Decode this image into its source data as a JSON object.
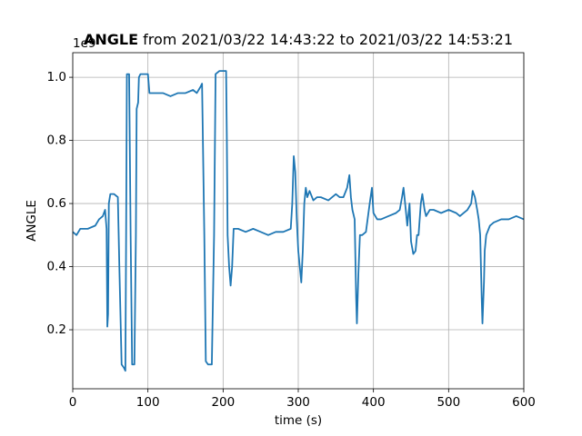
{
  "chart_data": {
    "type": "line",
    "title_bold": "ANGLE",
    "title": "from 2021/03/22 14:43:22 to 2021/03/22 14:53:21",
    "xlabel": "time (s)",
    "ylabel": "ANGLE",
    "y_offset_label": "1e9",
    "xlim": [
      0,
      600
    ],
    "ylim": [
      0.013,
      1.078
    ],
    "xticks": [
      0,
      100,
      200,
      300,
      400,
      500,
      600
    ],
    "yticks": [
      0.2,
      0.4,
      0.6,
      0.8,
      {
        "value": 1,
        "label": "1.0"
      }
    ],
    "grid": true,
    "series": [
      {
        "color": "#1f77b4",
        "x": [
          0,
          5,
          10,
          20,
          30,
          35,
          40,
          43,
          45,
          46,
          47,
          48,
          50,
          55,
          60,
          62,
          65,
          68,
          70,
          71,
          72,
          75,
          77,
          79,
          82,
          84,
          85,
          87,
          88,
          90,
          100,
          102,
          110,
          120,
          130,
          140,
          150,
          160,
          165,
          170,
          172,
          175,
          177,
          180,
          185,
          188,
          190,
          195,
          200,
          204,
          205,
          206,
          208,
          210,
          212,
          214,
          220,
          230,
          240,
          250,
          260,
          270,
          280,
          290,
          292,
          294,
          296,
          298,
          300,
          302,
          304,
          306,
          308,
          310,
          312,
          315,
          320,
          325,
          330,
          340,
          350,
          355,
          360,
          365,
          368,
          370,
          372,
          375,
          377,
          378,
          380,
          382,
          385,
          390,
          395,
          398,
          400,
          405,
          410,
          420,
          430,
          435,
          438,
          440,
          443,
          445,
          448,
          450,
          453,
          456,
          458,
          460,
          463,
          465,
          468,
          470,
          475,
          480,
          490,
          500,
          510,
          515,
          520,
          525,
          530,
          532,
          535,
          538,
          540,
          542,
          544,
          545,
          547,
          548,
          550,
          555,
          560,
          570,
          580,
          590,
          600
        ],
        "values": [
          0.51,
          0.5,
          0.52,
          0.52,
          0.53,
          0.55,
          0.56,
          0.58,
          0.52,
          0.21,
          0.25,
          0.6,
          0.63,
          0.63,
          0.62,
          0.4,
          0.09,
          0.08,
          0.07,
          0.5,
          1.01,
          1.01,
          0.5,
          0.09,
          0.09,
          0.5,
          0.9,
          0.92,
          1.0,
          1.01,
          1.01,
          0.95,
          0.95,
          0.95,
          0.94,
          0.95,
          0.95,
          0.96,
          0.95,
          0.97,
          0.98,
          0.5,
          0.1,
          0.09,
          0.09,
          0.5,
          1.01,
          1.02,
          1.02,
          1.02,
          0.8,
          0.5,
          0.4,
          0.34,
          0.4,
          0.52,
          0.52,
          0.51,
          0.52,
          0.51,
          0.5,
          0.51,
          0.51,
          0.52,
          0.6,
          0.75,
          0.7,
          0.55,
          0.45,
          0.4,
          0.35,
          0.45,
          0.6,
          0.65,
          0.62,
          0.64,
          0.61,
          0.62,
          0.62,
          0.61,
          0.63,
          0.62,
          0.62,
          0.65,
          0.69,
          0.62,
          0.58,
          0.55,
          0.3,
          0.22,
          0.38,
          0.5,
          0.5,
          0.51,
          0.6,
          0.65,
          0.57,
          0.55,
          0.55,
          0.56,
          0.57,
          0.58,
          0.62,
          0.65,
          0.58,
          0.53,
          0.6,
          0.48,
          0.44,
          0.45,
          0.5,
          0.5,
          0.6,
          0.63,
          0.58,
          0.56,
          0.58,
          0.58,
          0.57,
          0.58,
          0.57,
          0.56,
          0.57,
          0.58,
          0.6,
          0.64,
          0.62,
          0.58,
          0.55,
          0.5,
          0.3,
          0.22,
          0.35,
          0.45,
          0.5,
          0.53,
          0.54,
          0.55,
          0.55,
          0.56,
          0.55
        ]
      }
    ]
  }
}
